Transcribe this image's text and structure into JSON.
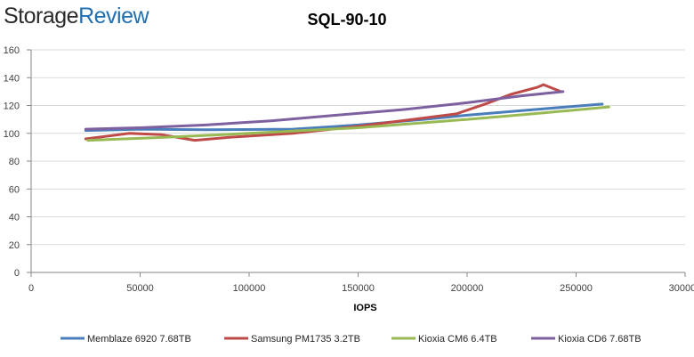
{
  "logo": {
    "part1": "Storage",
    "part2": "Review"
  },
  "chart_data": {
    "type": "line",
    "title": "SQL-90-10",
    "xlabel": "IOPS",
    "ylabel": "",
    "xlim": [
      0,
      300000
    ],
    "ylim": [
      0,
      160
    ],
    "xticks": [
      0,
      50000,
      100000,
      150000,
      200000,
      250000,
      300000
    ],
    "xtick_labels": [
      "0",
      "50000",
      "100000",
      "150000",
      "200000",
      "250000",
      "300000"
    ],
    "yticks": [
      0,
      20,
      40,
      60,
      80,
      100,
      120,
      140,
      160
    ],
    "ytick_labels": [
      "0",
      "20",
      "40",
      "60",
      "80",
      "100",
      "120",
      "140",
      "160"
    ],
    "grid": "horizontal",
    "legend_position": "bottom",
    "series": [
      {
        "name": "Memblaze 6920 7.68TB",
        "color": "#4a7ebb",
        "points": [
          [
            25000,
            102
          ],
          [
            50000,
            103
          ],
          [
            80000,
            102.5
          ],
          [
            120000,
            103
          ],
          [
            150000,
            106
          ],
          [
            180000,
            110
          ],
          [
            200000,
            113
          ],
          [
            230000,
            117
          ],
          [
            262000,
            121
          ]
        ]
      },
      {
        "name": "Samsung PM1735 3.2TB",
        "color": "#be4b48",
        "points": [
          [
            25000,
            96
          ],
          [
            45000,
            100
          ],
          [
            60000,
            99
          ],
          [
            75000,
            95
          ],
          [
            90000,
            97
          ],
          [
            120000,
            100
          ],
          [
            150000,
            105
          ],
          [
            175000,
            110
          ],
          [
            195000,
            114
          ],
          [
            210000,
            122
          ],
          [
            220000,
            128
          ],
          [
            232000,
            133
          ],
          [
            235000,
            135
          ],
          [
            243000,
            130
          ]
        ]
      },
      {
        "name": "Kioxia CM6 6.4TB",
        "color": "#98b954",
        "points": [
          [
            26000,
            95
          ],
          [
            60000,
            97
          ],
          [
            100000,
            100
          ],
          [
            150000,
            104
          ],
          [
            200000,
            110
          ],
          [
            230000,
            114
          ],
          [
            265000,
            119
          ]
        ]
      },
      {
        "name": "Kioxia CD6 7.68TB",
        "color": "#7d60a0",
        "points": [
          [
            25000,
            103
          ],
          [
            50000,
            104
          ],
          [
            80000,
            106
          ],
          [
            110000,
            109
          ],
          [
            140000,
            113
          ],
          [
            170000,
            117
          ],
          [
            200000,
            122
          ],
          [
            225000,
            127
          ],
          [
            244000,
            130
          ]
        ]
      }
    ]
  }
}
